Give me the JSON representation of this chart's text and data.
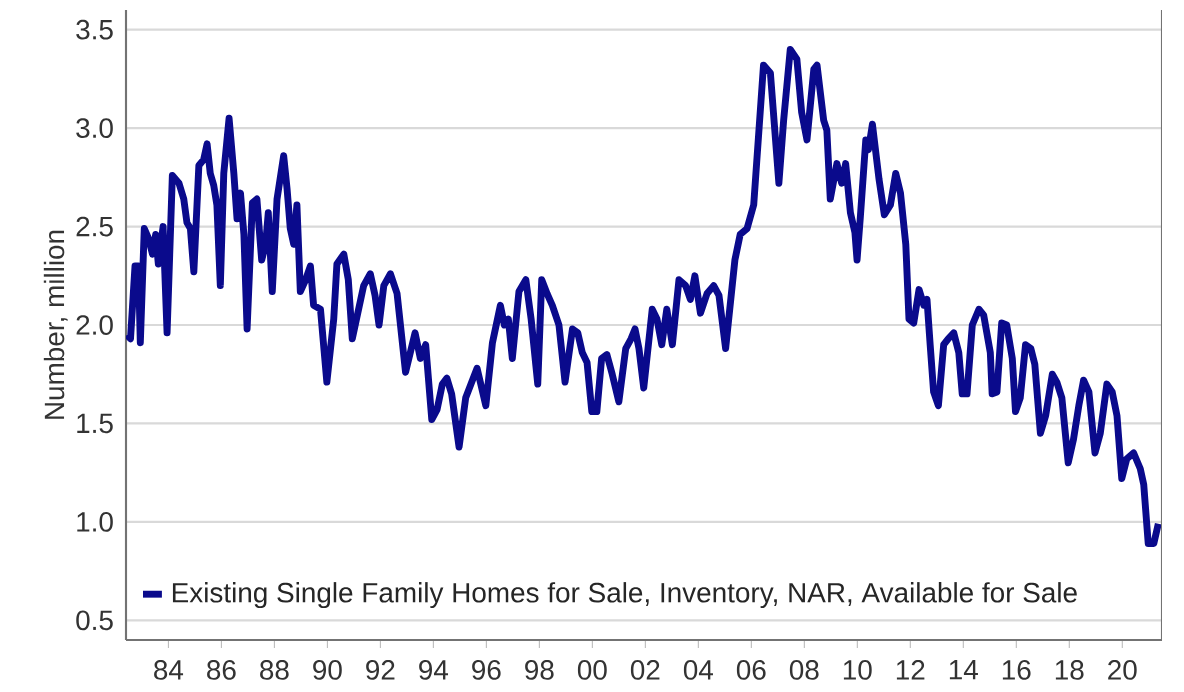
{
  "chart_data": {
    "type": "line",
    "ylabel": "Number, million",
    "x": [
      1982.44,
      1982.57,
      1982.74,
      1982.87,
      1982.94,
      1983.09,
      1983.25,
      1983.4,
      1983.52,
      1983.62,
      1983.8,
      1983.95,
      1984.15,
      1984.4,
      1984.58,
      1984.7,
      1984.83,
      1984.96,
      1985.15,
      1985.33,
      1985.46,
      1985.58,
      1985.71,
      1985.83,
      1985.96,
      1986.09,
      1986.29,
      1986.47,
      1986.59,
      1986.72,
      1986.85,
      1986.97,
      1987.17,
      1987.34,
      1987.52,
      1987.67,
      1987.77,
      1987.92,
      1988.1,
      1988.35,
      1988.48,
      1988.6,
      1988.73,
      1988.85,
      1988.98,
      1989.18,
      1989.36,
      1989.48,
      1989.74,
      1989.98,
      1990.24,
      1990.36,
      1990.62,
      1990.79,
      1990.94,
      1991.37,
      1991.62,
      1991.8,
      1991.95,
      1992.13,
      1992.38,
      1992.63,
      1992.95,
      1993.31,
      1993.51,
      1993.71,
      1993.94,
      1994.14,
      1994.34,
      1994.51,
      1994.69,
      1994.97,
      1995.22,
      1995.42,
      1995.65,
      1995.98,
      1996.23,
      1996.53,
      1996.68,
      1996.83,
      1996.98,
      1997.23,
      1997.49,
      1997.69,
      1997.94,
      1998.09,
      1998.29,
      1998.49,
      1998.74,
      1998.97,
      1999.25,
      1999.45,
      1999.62,
      1999.8,
      1999.98,
      2000.17,
      2000.35,
      2000.55,
      2000.75,
      2001.0,
      2001.26,
      2001.46,
      2001.61,
      2001.76,
      2001.94,
      2002.26,
      2002.44,
      2002.62,
      2002.81,
      2003.02,
      2003.27,
      2003.52,
      2003.7,
      2003.87,
      2004.08,
      2004.33,
      2004.58,
      2004.78,
      2005.03,
      2005.38,
      2005.58,
      2005.84,
      2006.09,
      2006.46,
      2006.72,
      2007.04,
      2007.22,
      2007.47,
      2007.72,
      2007.9,
      2008.1,
      2008.36,
      2008.48,
      2008.73,
      2008.85,
      2008.98,
      2009.23,
      2009.41,
      2009.56,
      2009.74,
      2009.91,
      2009.99,
      2010.11,
      2010.32,
      2010.42,
      2010.57,
      2010.82,
      2011.02,
      2011.25,
      2011.45,
      2011.63,
      2011.83,
      2011.95,
      2012.13,
      2012.33,
      2012.51,
      2012.63,
      2012.75,
      2012.88,
      2013.06,
      2013.26,
      2013.43,
      2013.64,
      2013.83,
      2013.96,
      2014.14,
      2014.34,
      2014.59,
      2014.77,
      2015.02,
      2015.09,
      2015.27,
      2015.45,
      2015.64,
      2015.85,
      2015.97,
      2016.15,
      2016.35,
      2016.55,
      2016.7,
      2016.91,
      2017.11,
      2017.36,
      2017.53,
      2017.72,
      2017.96,
      2018.16,
      2018.36,
      2018.54,
      2018.74,
      2018.97,
      2019.17,
      2019.42,
      2019.62,
      2019.8,
      2019.98,
      2020.17,
      2020.43,
      2020.68,
      2020.81,
      2020.98,
      2021.19,
      2021.36
    ],
    "series": [
      {
        "name": "Existing Single Family Homes for Sale, Inventory, NAR, Available for Sale",
        "color": "#0a0a8c",
        "values": [
          1.95,
          1.93,
          2.3,
          2.3,
          1.91,
          2.49,
          2.44,
          2.36,
          2.46,
          2.31,
          2.5,
          1.96,
          2.76,
          2.72,
          2.64,
          2.52,
          2.49,
          2.27,
          2.81,
          2.84,
          2.92,
          2.77,
          2.71,
          2.61,
          2.2,
          2.77,
          3.05,
          2.77,
          2.54,
          2.67,
          2.46,
          1.98,
          2.62,
          2.64,
          2.33,
          2.41,
          2.57,
          2.17,
          2.64,
          2.86,
          2.69,
          2.49,
          2.41,
          2.61,
          2.17,
          2.23,
          2.3,
          2.1,
          2.08,
          1.71,
          2.03,
          2.31,
          2.36,
          2.23,
          1.93,
          2.2,
          2.26,
          2.15,
          2.0,
          2.2,
          2.26,
          2.16,
          1.76,
          1.96,
          1.83,
          1.9,
          1.52,
          1.57,
          1.7,
          1.73,
          1.65,
          1.38,
          1.63,
          1.7,
          1.78,
          1.59,
          1.91,
          2.1,
          2.0,
          2.03,
          1.83,
          2.17,
          2.23,
          2.03,
          1.7,
          2.23,
          2.16,
          2.1,
          2.0,
          1.71,
          1.98,
          1.96,
          1.86,
          1.81,
          1.56,
          1.56,
          1.83,
          1.85,
          1.75,
          1.61,
          1.88,
          1.93,
          1.98,
          1.88,
          1.68,
          2.08,
          2.03,
          1.9,
          2.08,
          1.9,
          2.23,
          2.2,
          2.13,
          2.25,
          2.06,
          2.16,
          2.2,
          2.15,
          1.88,
          2.33,
          2.46,
          2.49,
          2.61,
          3.32,
          3.28,
          2.72,
          3.04,
          3.4,
          3.35,
          3.08,
          2.94,
          3.3,
          3.32,
          3.04,
          2.99,
          2.64,
          2.82,
          2.72,
          2.82,
          2.57,
          2.47,
          2.33,
          2.54,
          2.94,
          2.89,
          3.02,
          2.74,
          2.56,
          2.61,
          2.77,
          2.67,
          2.41,
          2.03,
          2.01,
          2.18,
          2.1,
          2.13,
          1.9,
          1.66,
          1.59,
          1.9,
          1.93,
          1.96,
          1.86,
          1.65,
          1.65,
          2.0,
          2.08,
          2.05,
          1.86,
          1.65,
          1.66,
          2.01,
          2.0,
          1.83,
          1.56,
          1.63,
          1.9,
          1.88,
          1.8,
          1.45,
          1.54,
          1.75,
          1.71,
          1.63,
          1.3,
          1.42,
          1.59,
          1.72,
          1.66,
          1.35,
          1.45,
          1.7,
          1.66,
          1.54,
          1.22,
          1.32,
          1.35,
          1.27,
          1.19,
          0.89,
          0.89,
          0.99
        ]
      }
    ],
    "xlim": [
      1982.4,
      2021.5
    ],
    "ylim": [
      0.4,
      3.6
    ],
    "xticks": [
      {
        "value": 1984,
        "label": "84"
      },
      {
        "value": 1986,
        "label": "86"
      },
      {
        "value": 1988,
        "label": "88"
      },
      {
        "value": 1990,
        "label": "90"
      },
      {
        "value": 1992,
        "label": "92"
      },
      {
        "value": 1994,
        "label": "94"
      },
      {
        "value": 1996,
        "label": "96"
      },
      {
        "value": 1998,
        "label": "98"
      },
      {
        "value": 2000,
        "label": "00"
      },
      {
        "value": 2002,
        "label": "02"
      },
      {
        "value": 2004,
        "label": "04"
      },
      {
        "value": 2006,
        "label": "06"
      },
      {
        "value": 2008,
        "label": "08"
      },
      {
        "value": 2010,
        "label": "10"
      },
      {
        "value": 2012,
        "label": "12"
      },
      {
        "value": 2014,
        "label": "14"
      },
      {
        "value": 2016,
        "label": "16"
      },
      {
        "value": 2018,
        "label": "18"
      },
      {
        "value": 2020,
        "label": "20"
      }
    ],
    "yticks": [
      {
        "value": 0.5,
        "label": "0.5"
      },
      {
        "value": 1.0,
        "label": "1.0"
      },
      {
        "value": 1.5,
        "label": "1.5"
      },
      {
        "value": 2.0,
        "label": "2.0"
      },
      {
        "value": 2.5,
        "label": "2.5"
      },
      {
        "value": 3.0,
        "label": "3.0"
      },
      {
        "value": 3.5,
        "label": "3.5"
      }
    ],
    "grid": "y",
    "legend": "bottom left",
    "marker": "none",
    "line_style": "solid"
  }
}
